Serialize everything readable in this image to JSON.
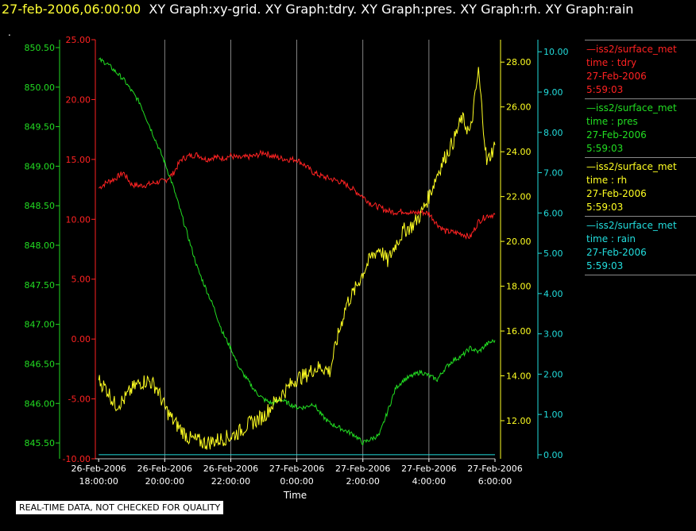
{
  "header": {
    "timestamp": "27-feb-2006,06:00:00",
    "graphs": "XY Graph:xy-grid.  XY Graph:tdry.  XY Graph:pres.  XY Graph:rh.  XY Graph:rain",
    "marker": "."
  },
  "colors": {
    "tdry": "#ff2222",
    "pres": "#22dd22",
    "rh": "#ffff22",
    "rain": "#22dddd",
    "grid": "#cccccc"
  },
  "legend": [
    {
      "station": "—iss2/surface_met",
      "var": "time : tdry",
      "date": "27-Feb-2006",
      "time": "5:59:03",
      "color": "#ff2222"
    },
    {
      "station": "—iss2/surface_met",
      "var": "time : pres",
      "date": "27-Feb-2006",
      "time": "5:59:03",
      "color": "#22dd22"
    },
    {
      "station": "—iss2/surface_met",
      "var": "time : rh",
      "date": "27-Feb-2006",
      "time": "5:59:03",
      "color": "#ffff22"
    },
    {
      "station": "—iss2/surface_met",
      "var": "time : rain",
      "date": "27-Feb-2006",
      "time": "5:59:03",
      "color": "#22dddd"
    }
  ],
  "footer_note": "REAL-TIME DATA, NOT CHECKED FOR QUALITY",
  "chart_data": {
    "type": "line",
    "xlabel": "Time",
    "x_ticks": [
      {
        "date": "26-Feb-2006",
        "time": "18:00:00",
        "hour": 0
      },
      {
        "date": "26-Feb-2006",
        "time": "20:00:00",
        "hour": 2
      },
      {
        "date": "26-Feb-2006",
        "time": "22:00:00",
        "hour": 4
      },
      {
        "date": "27-Feb-2006",
        "time": "0:00:00",
        "hour": 6
      },
      {
        "date": "27-Feb-2006",
        "time": "2:00:00",
        "hour": 8
      },
      {
        "date": "27-Feb-2006",
        "time": "4:00:00",
        "hour": 10
      },
      {
        "date": "27-Feb-2006",
        "time": "6:00:00",
        "hour": 12
      }
    ],
    "x_range_hours": [
      -0.1,
      12.0
    ],
    "axes": {
      "tdry": {
        "range": [
          -10,
          25
        ],
        "ticks": [
          "25.00",
          "20.00",
          "15.00",
          "10.00",
          "5.00",
          "0.00",
          "-5.00",
          "-10.00"
        ],
        "color": "#ff2222"
      },
      "pres": {
        "range": [
          845.3,
          850.6
        ],
        "ticks": [
          "850.50",
          "850.00",
          "849.50",
          "849.00",
          "848.50",
          "848.00",
          "847.50",
          "847.00",
          "846.50",
          "846.00",
          "845.50"
        ],
        "color": "#22dd22"
      },
      "rh": {
        "range": [
          10.3,
          29.0
        ],
        "ticks": [
          "28.00",
          "26.00",
          "24.00",
          "22.00",
          "20.00",
          "18.00",
          "16.00",
          "14.00",
          "12.00"
        ],
        "color": "#ffff22"
      },
      "rain": {
        "range": [
          -0.1,
          10.3
        ],
        "ticks": [
          "10.00",
          "9.00",
          "8.00",
          "7.00",
          "6.00",
          "5.00",
          "4.00",
          "3.00",
          "2.00",
          "1.00",
          "0.00"
        ],
        "color": "#22dddd"
      }
    },
    "series": [
      {
        "name": "tdry",
        "x": [
          0,
          0.25,
          0.5,
          0.75,
          1,
          1.25,
          1.5,
          1.75,
          2,
          2.25,
          2.5,
          2.75,
          3,
          3.25,
          3.5,
          3.75,
          4,
          4.25,
          4.5,
          4.75,
          5,
          5.25,
          5.5,
          5.75,
          6,
          6.25,
          6.5,
          6.75,
          7,
          7.25,
          7.5,
          7.75,
          8,
          8.25,
          8.5,
          8.75,
          9,
          9.25,
          9.5,
          9.75,
          10,
          10.25,
          10.5,
          10.75,
          11,
          11.25,
          11.5,
          11.75,
          12
        ],
        "values": [
          12.6,
          13.1,
          13.4,
          13.9,
          12.9,
          12.8,
          12.9,
          13.1,
          13.2,
          13.8,
          15.0,
          15.3,
          15.4,
          15.0,
          15.2,
          15.1,
          15.3,
          15.1,
          15.2,
          15.3,
          15.6,
          15.3,
          15.1,
          15.0,
          15.0,
          14.5,
          13.9,
          13.6,
          13.4,
          13.2,
          12.9,
          12.4,
          11.9,
          11.3,
          11.0,
          10.7,
          10.6,
          10.7,
          10.5,
          10.6,
          10.5,
          9.6,
          9.0,
          8.9,
          8.8,
          8.5,
          9.8,
          10.3,
          10.4
        ]
      },
      {
        "name": "pres",
        "x": [
          0,
          0.25,
          0.5,
          0.75,
          1,
          1.25,
          1.5,
          1.75,
          2,
          2.25,
          2.5,
          2.75,
          3,
          3.25,
          3.5,
          3.75,
          4,
          4.25,
          4.5,
          4.75,
          5,
          5.25,
          5.5,
          5.75,
          6,
          6.25,
          6.5,
          6.75,
          7,
          7.25,
          7.5,
          7.75,
          8,
          8.25,
          8.5,
          8.75,
          9,
          9.25,
          9.5,
          9.75,
          10,
          10.25,
          10.5,
          10.75,
          11,
          11.25,
          11.5,
          11.75,
          12
        ],
        "values": [
          850.35,
          850.3,
          850.2,
          850.1,
          849.95,
          849.8,
          849.55,
          849.3,
          849.05,
          848.75,
          848.4,
          848.05,
          847.7,
          847.45,
          847.2,
          846.9,
          846.7,
          846.45,
          846.3,
          846.15,
          846.05,
          846.0,
          846.05,
          846.0,
          845.95,
          845.95,
          846.0,
          845.85,
          845.75,
          845.7,
          845.65,
          845.6,
          845.5,
          845.55,
          845.6,
          845.9,
          846.2,
          846.3,
          846.35,
          846.4,
          846.35,
          846.3,
          846.45,
          846.55,
          846.6,
          846.7,
          846.65,
          846.75,
          846.8
        ]
      },
      {
        "name": "rh",
        "x": [
          0,
          0.25,
          0.5,
          0.75,
          1,
          1.25,
          1.5,
          1.75,
          2,
          2.25,
          2.5,
          2.75,
          3,
          3.25,
          3.5,
          3.75,
          4,
          4.25,
          4.5,
          4.75,
          5,
          5.25,
          5.5,
          5.75,
          6,
          6.25,
          6.5,
          6.75,
          7,
          7.25,
          7.5,
          7.75,
          8,
          8.25,
          8.5,
          8.75,
          9,
          9.25,
          9.5,
          9.75,
          10,
          10.25,
          10.5,
          10.75,
          11,
          11.25,
          11.5,
          11.75,
          12
        ],
        "values": [
          13.8,
          13.4,
          12.7,
          12.9,
          13.4,
          13.7,
          13.8,
          13.5,
          12.6,
          12.0,
          11.6,
          11.2,
          11.1,
          11.0,
          11.1,
          11.2,
          11.3,
          11.5,
          11.8,
          12.0,
          12.2,
          12.7,
          13.1,
          13.5,
          13.9,
          14.0,
          14.3,
          14.4,
          14.2,
          15.8,
          17.2,
          17.8,
          18.6,
          19.3,
          19.7,
          19.1,
          19.9,
          20.5,
          20.7,
          21.2,
          22.0,
          23.0,
          23.8,
          24.5,
          25.5,
          24.8,
          27.6,
          23.5,
          24.3
        ]
      },
      {
        "name": "rain",
        "x": [
          0,
          12
        ],
        "values": [
          0,
          0
        ]
      }
    ]
  }
}
